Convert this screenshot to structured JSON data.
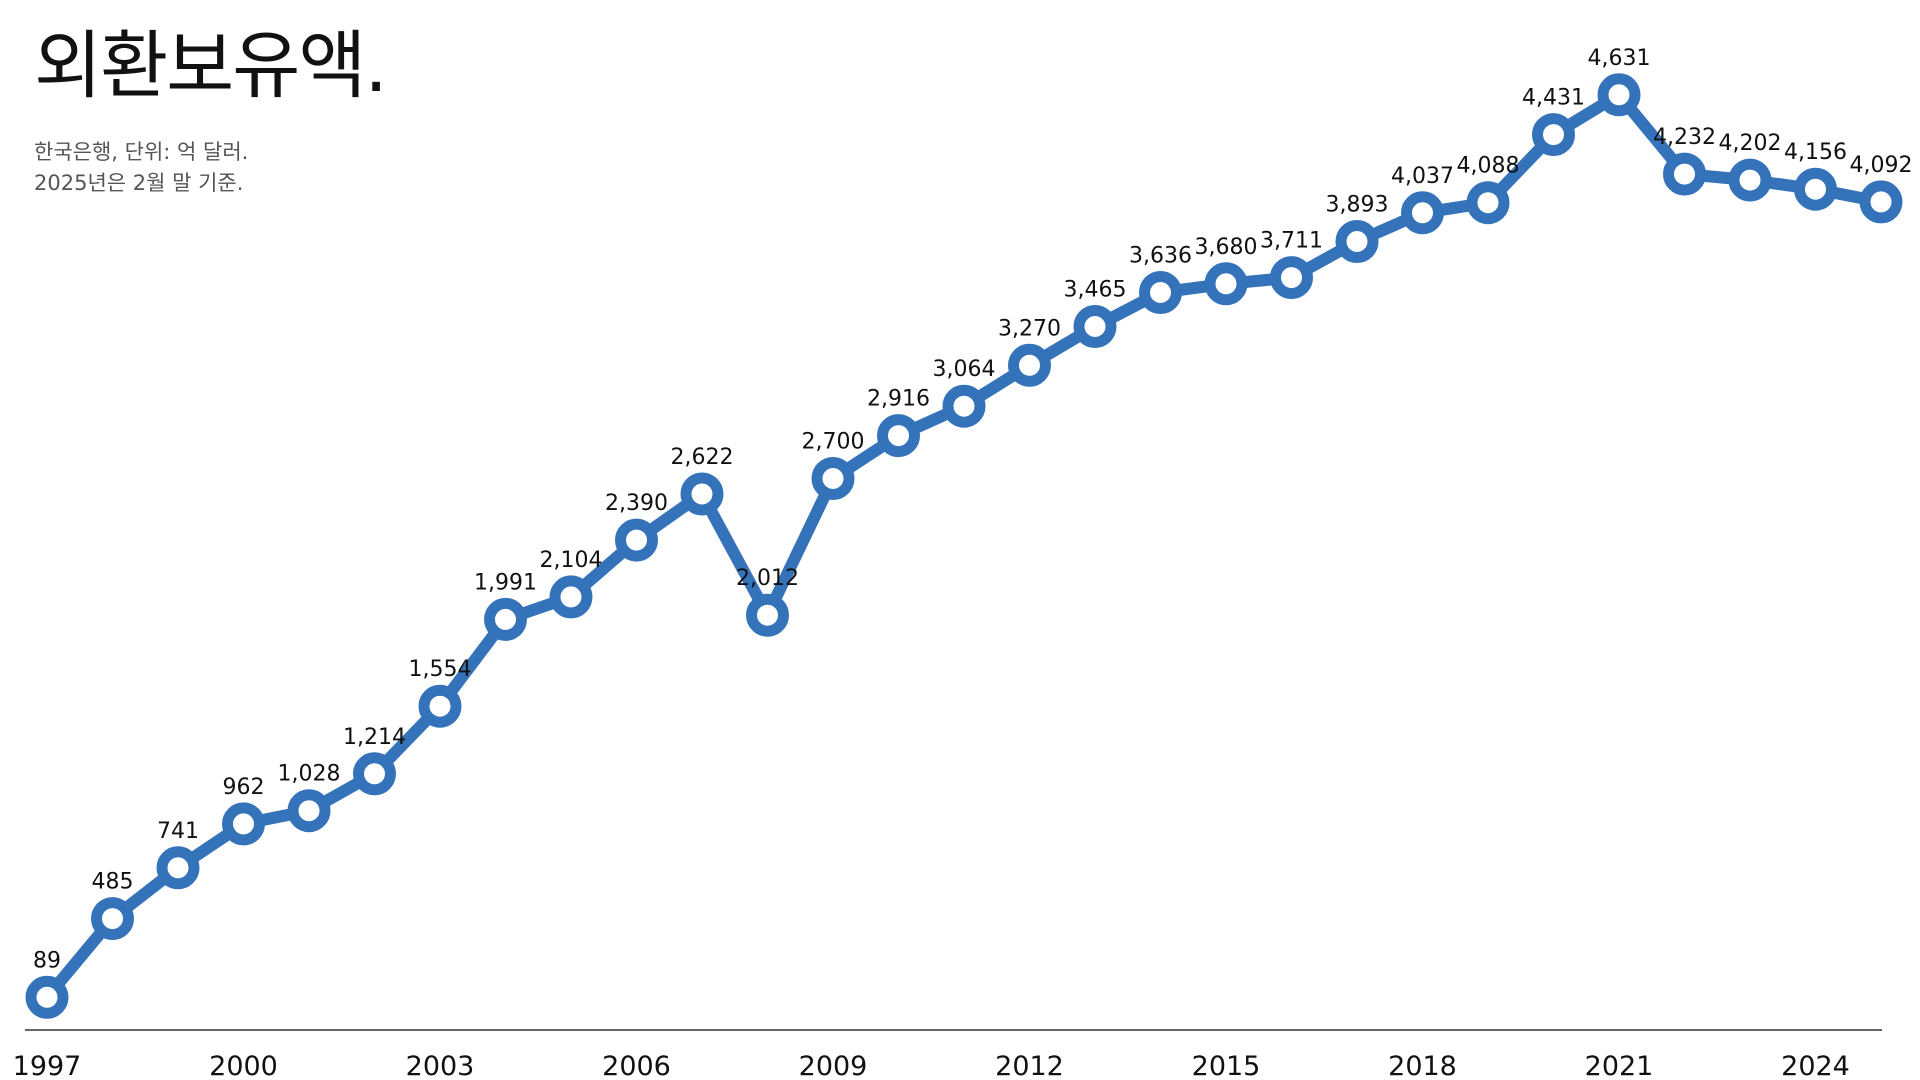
{
  "title": "외환보유액.",
  "subtitle": {
    "line1": "한국은행, 단위: 억 달러.",
    "line2": "2025년은 2월 말 기준."
  },
  "colors": {
    "line": "#3473ba",
    "marker_fill": "#ffffff",
    "axis": "#333333",
    "text": "#111111"
  },
  "chart_data": {
    "type": "line",
    "x": [
      1997,
      1998,
      1999,
      2000,
      2001,
      2002,
      2003,
      2004,
      2005,
      2006,
      2007,
      2008,
      2009,
      2010,
      2011,
      2012,
      2013,
      2014,
      2015,
      2016,
      2017,
      2018,
      2019,
      2020,
      2021,
      2022,
      2023,
      2024,
      2025
    ],
    "values": [
      89,
      485,
      741,
      962,
      1028,
      1214,
      1554,
      1991,
      2104,
      2390,
      2622,
      2012,
      2700,
      2916,
      3064,
      3270,
      3465,
      3636,
      3680,
      3711,
      3893,
      4037,
      4088,
      4431,
      4631,
      4232,
      4202,
      4156,
      4092
    ],
    "labels": [
      "89",
      "485",
      "741",
      "962",
      "1,028",
      "1,214",
      "1,554",
      "1,991",
      "2,104",
      "2,390",
      "2,622",
      "2,012",
      "2,700",
      "2,916",
      "3,064",
      "3,270",
      "3,465",
      "3,636",
      "3,680",
      "3,711",
      "3,893",
      "4,037",
      "4,088",
      "4,431",
      "4,631",
      "4,232",
      "4,202",
      "4,156",
      "4,092"
    ],
    "x_ticks": [
      "1997",
      "2000",
      "2003",
      "2006",
      "2009",
      "2012",
      "2015",
      "2018",
      "2021",
      "2024"
    ],
    "xlabel": "",
    "ylabel": "",
    "ylim": [
      0,
      5000
    ],
    "grid": false,
    "legend": "none"
  }
}
